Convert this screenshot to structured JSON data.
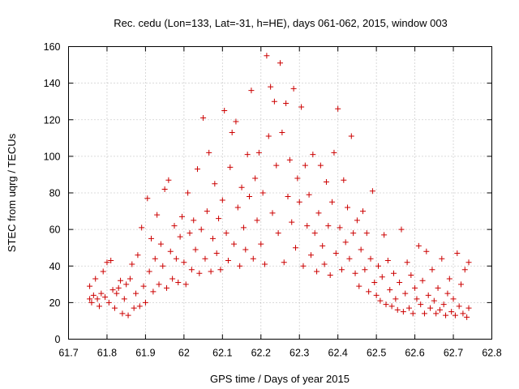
{
  "chart_data": {
    "type": "scatter",
    "title": "Rec. cedu (Lon=133, Lat=-31, h=HE), days 061-062, 2015, window 003",
    "xlabel": "GPS time / Days of year 2015",
    "ylabel": "STEC from uqrg / TECUs",
    "xlim": [
      61.7,
      62.8
    ],
    "ylim": [
      0,
      160
    ],
    "xticks": [
      61.7,
      61.8,
      61.9,
      62.0,
      62.1,
      62.2,
      62.3,
      62.4,
      62.5,
      62.6,
      62.7,
      62.8
    ],
    "xtick_labels": [
      "61.7",
      "61.8",
      "61.9",
      "62",
      "62.1",
      "62.2",
      "62.3",
      "62.4",
      "62.5",
      "62.6",
      "62.7",
      "62.8"
    ],
    "yticks": [
      0,
      20,
      40,
      60,
      80,
      100,
      120,
      140,
      160
    ],
    "ytick_labels": [
      "0",
      "20",
      "40",
      "60",
      "80",
      "100",
      "120",
      "140",
      "160"
    ],
    "grid": true,
    "marker": "+",
    "color": "#cc0000",
    "series": [
      {
        "points": [
          [
            61.755,
            29
          ],
          [
            61.755,
            22
          ],
          [
            61.76,
            20
          ],
          [
            61.765,
            24
          ],
          [
            61.77,
            33
          ],
          [
            61.775,
            22
          ],
          [
            61.78,
            18
          ],
          [
            61.785,
            25
          ],
          [
            61.79,
            37
          ],
          [
            61.795,
            23
          ],
          [
            61.8,
            42
          ],
          [
            61.805,
            20
          ],
          [
            61.81,
            43
          ],
          [
            61.815,
            27
          ],
          [
            61.82,
            17
          ],
          [
            61.825,
            25
          ],
          [
            61.83,
            28
          ],
          [
            61.835,
            32
          ],
          [
            61.84,
            14
          ],
          [
            61.845,
            22
          ],
          [
            61.85,
            30
          ],
          [
            61.855,
            13
          ],
          [
            61.86,
            33
          ],
          [
            61.865,
            41
          ],
          [
            61.87,
            17
          ],
          [
            61.875,
            25
          ],
          [
            61.88,
            46
          ],
          [
            61.885,
            18
          ],
          [
            61.89,
            61
          ],
          [
            61.895,
            29
          ],
          [
            61.9,
            20
          ],
          [
            61.905,
            77
          ],
          [
            61.91,
            37
          ],
          [
            61.915,
            55
          ],
          [
            61.92,
            26
          ],
          [
            61.925,
            44
          ],
          [
            61.93,
            68
          ],
          [
            61.935,
            30
          ],
          [
            61.94,
            52
          ],
          [
            61.945,
            40
          ],
          [
            61.95,
            82
          ],
          [
            61.955,
            28
          ],
          [
            61.96,
            87
          ],
          [
            61.965,
            48
          ],
          [
            61.97,
            33
          ],
          [
            61.975,
            62
          ],
          [
            61.98,
            44
          ],
          [
            61.985,
            31
          ],
          [
            61.99,
            56
          ],
          [
            61.995,
            67
          ],
          [
            62.0,
            42
          ],
          [
            62.005,
            30
          ],
          [
            62.01,
            80
          ],
          [
            62.015,
            58
          ],
          [
            62.02,
            38
          ],
          [
            62.025,
            65
          ],
          [
            62.03,
            49
          ],
          [
            62.035,
            93
          ],
          [
            62.04,
            36
          ],
          [
            62.045,
            60
          ],
          [
            62.05,
            121
          ],
          [
            62.055,
            44
          ],
          [
            62.06,
            70
          ],
          [
            62.065,
            102
          ],
          [
            62.07,
            37
          ],
          [
            62.075,
            55
          ],
          [
            62.08,
            85
          ],
          [
            62.085,
            47
          ],
          [
            62.09,
            66
          ],
          [
            62.095,
            38
          ],
          [
            62.1,
            76
          ],
          [
            62.105,
            125
          ],
          [
            62.11,
            58
          ],
          [
            62.115,
            43
          ],
          [
            62.12,
            94
          ],
          [
            62.125,
            113
          ],
          [
            62.13,
            52
          ],
          [
            62.135,
            119
          ],
          [
            62.14,
            72
          ],
          [
            62.145,
            40
          ],
          [
            62.15,
            83
          ],
          [
            62.155,
            61
          ],
          [
            62.16,
            49
          ],
          [
            62.165,
            101
          ],
          [
            62.17,
            78
          ],
          [
            62.175,
            136
          ],
          [
            62.18,
            44
          ],
          [
            62.185,
            88
          ],
          [
            62.19,
            65
          ],
          [
            62.195,
            102
          ],
          [
            62.2,
            52
          ],
          [
            62.205,
            80
          ],
          [
            62.21,
            41
          ],
          [
            62.215,
            155
          ],
          [
            62.22,
            111
          ],
          [
            62.225,
            138
          ],
          [
            62.23,
            69
          ],
          [
            62.235,
            130
          ],
          [
            62.24,
            95
          ],
          [
            62.245,
            58
          ],
          [
            62.25,
            151
          ],
          [
            62.255,
            113
          ],
          [
            62.26,
            42
          ],
          [
            62.265,
            129
          ],
          [
            62.27,
            78
          ],
          [
            62.275,
            98
          ],
          [
            62.28,
            64
          ],
          [
            62.285,
            137
          ],
          [
            62.29,
            50
          ],
          [
            62.295,
            88
          ],
          [
            62.3,
            75
          ],
          [
            62.305,
            127
          ],
          [
            62.31,
            40
          ],
          [
            62.315,
            95
          ],
          [
            62.32,
            62
          ],
          [
            62.325,
            79
          ],
          [
            62.33,
            46
          ],
          [
            62.335,
            101
          ],
          [
            62.34,
            58
          ],
          [
            62.345,
            37
          ],
          [
            62.35,
            69
          ],
          [
            62.355,
            95
          ],
          [
            62.36,
            51
          ],
          [
            62.365,
            41
          ],
          [
            62.37,
            86
          ],
          [
            62.375,
            62
          ],
          [
            62.38,
            35
          ],
          [
            62.385,
            75
          ],
          [
            62.39,
            102
          ],
          [
            62.395,
            47
          ],
          [
            62.4,
            126
          ],
          [
            62.405,
            61
          ],
          [
            62.41,
            38
          ],
          [
            62.415,
            87
          ],
          [
            62.42,
            53
          ],
          [
            62.425,
            72
          ],
          [
            62.43,
            44
          ],
          [
            62.435,
            111
          ],
          [
            62.44,
            58
          ],
          [
            62.445,
            36
          ],
          [
            62.45,
            65
          ],
          [
            62.455,
            29
          ],
          [
            62.46,
            49
          ],
          [
            62.465,
            70
          ],
          [
            62.47,
            38
          ],
          [
            62.475,
            58
          ],
          [
            62.48,
            26
          ],
          [
            62.485,
            44
          ],
          [
            62.49,
            81
          ],
          [
            62.495,
            31
          ],
          [
            62.5,
            24
          ],
          [
            62.505,
            40
          ],
          [
            62.51,
            21
          ],
          [
            62.515,
            34
          ],
          [
            62.52,
            57
          ],
          [
            62.525,
            19
          ],
          [
            62.53,
            43
          ],
          [
            62.535,
            27
          ],
          [
            62.54,
            18
          ],
          [
            62.545,
            36
          ],
          [
            62.55,
            22
          ],
          [
            62.555,
            16
          ],
          [
            62.56,
            31
          ],
          [
            62.565,
            60
          ],
          [
            62.57,
            15
          ],
          [
            62.575,
            25
          ],
          [
            62.58,
            42
          ],
          [
            62.585,
            17
          ],
          [
            62.59,
            35
          ],
          [
            62.595,
            14
          ],
          [
            62.6,
            28
          ],
          [
            62.605,
            22
          ],
          [
            62.61,
            51
          ],
          [
            62.615,
            19
          ],
          [
            62.62,
            32
          ],
          [
            62.625,
            14
          ],
          [
            62.63,
            48
          ],
          [
            62.635,
            24
          ],
          [
            62.64,
            17
          ],
          [
            62.645,
            38
          ],
          [
            62.65,
            21
          ],
          [
            62.655,
            14
          ],
          [
            62.66,
            28
          ],
          [
            62.665,
            16
          ],
          [
            62.67,
            44
          ],
          [
            62.675,
            19
          ],
          [
            62.68,
            13
          ],
          [
            62.685,
            25
          ],
          [
            62.69,
            33
          ],
          [
            62.695,
            15
          ],
          [
            62.7,
            22
          ],
          [
            62.705,
            13
          ],
          [
            62.71,
            47
          ],
          [
            62.715,
            18
          ],
          [
            62.72,
            30
          ],
          [
            62.725,
            14
          ],
          [
            62.73,
            38
          ],
          [
            62.735,
            12
          ],
          [
            62.74,
            42
          ],
          [
            62.74,
            17
          ]
        ]
      }
    ]
  }
}
